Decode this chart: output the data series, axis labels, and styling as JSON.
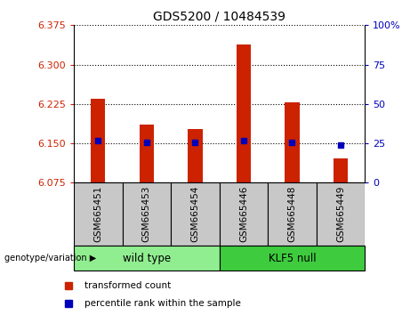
{
  "title": "GDS5200 / 10484539",
  "samples": [
    "GSM665451",
    "GSM665453",
    "GSM665454",
    "GSM665446",
    "GSM665448",
    "GSM665449"
  ],
  "red_values": [
    6.235,
    6.185,
    6.178,
    6.338,
    6.228,
    6.122
  ],
  "blue_values": [
    6.155,
    6.152,
    6.151,
    6.155,
    6.151,
    6.147
  ],
  "y_min": 6.075,
  "y_max": 6.375,
  "y_ticks": [
    6.075,
    6.15,
    6.225,
    6.3,
    6.375
  ],
  "y_right_ticks": [
    0,
    25,
    50,
    75,
    100
  ],
  "y_right_labels": [
    "0",
    "25",
    "50",
    "75",
    "100%"
  ],
  "groups": [
    {
      "label": "wild type",
      "start": 0,
      "end": 3,
      "color": "#90EE90"
    },
    {
      "label": "KLF5 null",
      "start": 3,
      "end": 6,
      "color": "#3ECC3E"
    }
  ],
  "genotype_label": "genotype/variation",
  "legend_red": "transformed count",
  "legend_blue": "percentile rank within the sample",
  "bar_color": "#CC2200",
  "blue_color": "#0000BB",
  "ax_color_left": "#CC2200",
  "ax_color_right": "#0000BB",
  "xtick_bg": "#C8C8C8",
  "fig_width": 4.61,
  "fig_height": 3.54,
  "dpi": 100
}
